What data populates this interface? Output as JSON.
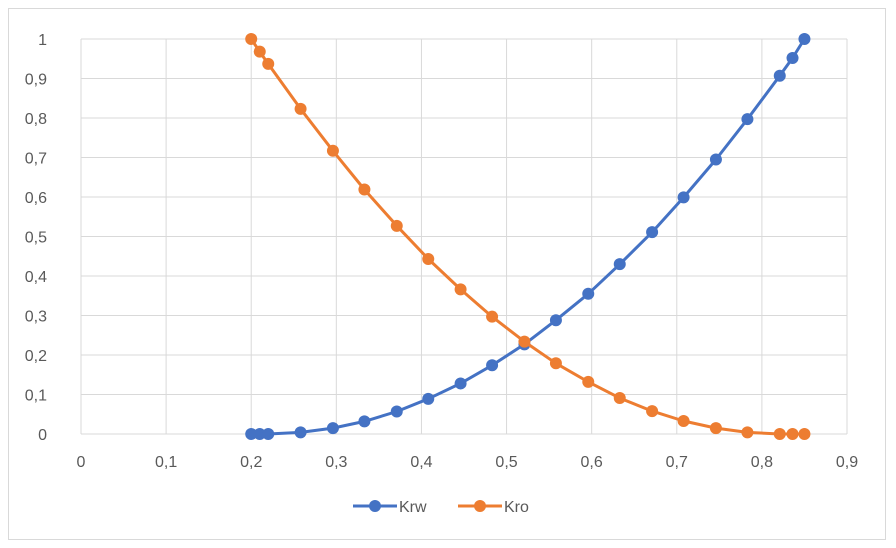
{
  "chart_data": {
    "type": "scatter",
    "xlim": [
      0,
      0.9
    ],
    "ylim": [
      0,
      1
    ],
    "x_ticks": [
      "0",
      "0,1",
      "0,2",
      "0,3",
      "0,4",
      "0,5",
      "0,6",
      "0,7",
      "0,8",
      "0,9"
    ],
    "y_ticks": [
      "0",
      "0,1",
      "0,2",
      "0,3",
      "0,4",
      "0,5",
      "0,6",
      "0,7",
      "0,8",
      "0,9",
      "1"
    ],
    "grid": true,
    "legend_position": "bottom",
    "series": [
      {
        "name": "Krw",
        "color": "#4472c4",
        "x": [
          0.2,
          0.21,
          0.22,
          0.258,
          0.296,
          0.333,
          0.371,
          0.408,
          0.446,
          0.483,
          0.521,
          0.558,
          0.596,
          0.633,
          0.671,
          0.708,
          0.746,
          0.783,
          0.821,
          0.836,
          0.85
        ],
        "y": [
          0.0,
          0.0,
          0.0,
          0.004,
          0.015,
          0.032,
          0.057,
          0.089,
          0.128,
          0.174,
          0.227,
          0.288,
          0.355,
          0.43,
          0.511,
          0.599,
          0.695,
          0.797,
          0.907,
          0.952,
          1.0
        ]
      },
      {
        "name": "Kro",
        "color": "#ed7d31",
        "x": [
          0.2,
          0.21,
          0.22,
          0.258,
          0.296,
          0.333,
          0.371,
          0.408,
          0.446,
          0.483,
          0.521,
          0.558,
          0.596,
          0.633,
          0.671,
          0.708,
          0.746,
          0.783,
          0.821,
          0.836,
          0.85
        ],
        "y": [
          1.0,
          0.968,
          0.937,
          0.823,
          0.717,
          0.619,
          0.527,
          0.443,
          0.366,
          0.297,
          0.234,
          0.179,
          0.132,
          0.091,
          0.058,
          0.033,
          0.015,
          0.004,
          0.0,
          0.0,
          0.0
        ]
      }
    ]
  }
}
